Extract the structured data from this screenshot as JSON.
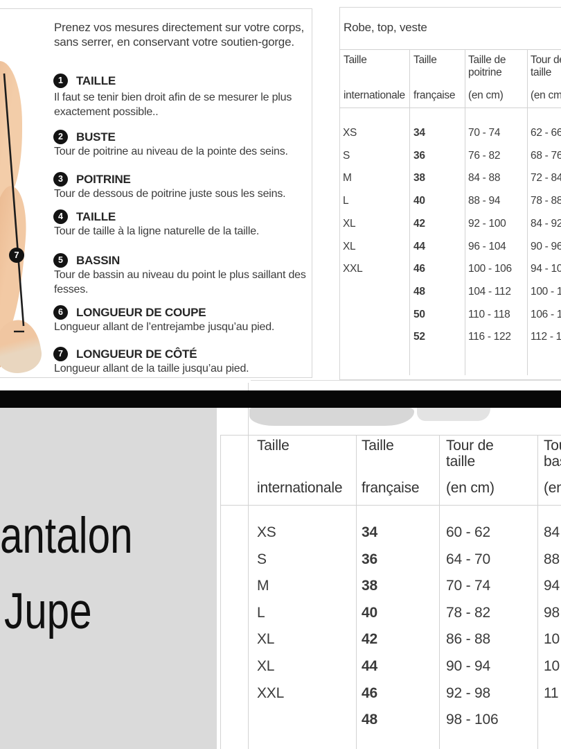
{
  "guide": {
    "intro": "Prenez vos mesures directement sur votre corps,\nsans serrer, en conservant votre soutien-gorge.",
    "items": [
      {
        "num": "1",
        "title": "TAILLE",
        "desc": "Il faut se tenir bien droit afin de se mesurer le plus\nexactement possible.."
      },
      {
        "num": "2",
        "title": "BUSTE",
        "desc": "Tour de poitrine au niveau de la pointe des seins."
      },
      {
        "num": "3",
        "title": "POITRINE",
        "desc": "Tour de dessous de poitrine juste sous les seins."
      },
      {
        "num": "4",
        "title": "TAILLE",
        "desc": "Tour de taille à la ligne naturelle de la taille."
      },
      {
        "num": "5",
        "title": "BASSIN",
        "desc": "Tour de bassin au niveau du point le plus saillant des\nfesses."
      },
      {
        "num": "6",
        "title": "LONGUEUR DE COUPE",
        "desc": "Longueur allant de l’entrejambe jusqu’au pied."
      },
      {
        "num": "7",
        "title": "LONGUEUR DE CÔTÉ",
        "desc": "Longueur allant de la taille jusqu’au pied."
      }
    ],
    "figure_badge": "7"
  },
  "robe_table": {
    "title": "Robe, top, veste",
    "headers": [
      {
        "l1": "Taille",
        "l2": "internationale"
      },
      {
        "l1": "Taille",
        "l2": "française"
      },
      {
        "l1": "Taille de",
        "l2": "poitrine",
        "l3": "(en cm)"
      },
      {
        "l1": "Tour de",
        "l2": "taille",
        "l3": "(en cm)"
      }
    ],
    "rows": [
      [
        "XS",
        "34",
        "70 - 74",
        "62 - 66"
      ],
      [
        "S",
        "36",
        "76 - 82",
        "68 - 76"
      ],
      [
        "M",
        "38",
        "84 - 88",
        "72 - 84"
      ],
      [
        "L",
        "40",
        "88 - 94",
        "78 - 88"
      ],
      [
        "XL",
        "42",
        "92 - 100",
        "84 - 92"
      ],
      [
        "XL",
        "44",
        "96 - 104",
        "90 - 96"
      ],
      [
        "XXL",
        "46",
        "100 - 106",
        "94 - 10"
      ],
      [
        "",
        "48",
        "104 - 112",
        "100 - 1"
      ],
      [
        "",
        "50",
        "110 - 118",
        "106 - 1"
      ],
      [
        "",
        "52",
        "116 - 122",
        "112 - 1"
      ]
    ]
  },
  "bottom": {
    "categories": [
      "Pantalon",
      "Jupe"
    ],
    "table": {
      "headers": [
        {
          "l1": "Taille",
          "l2": "internationale"
        },
        {
          "l1": "Taille",
          "l2": "française"
        },
        {
          "l1": "Tour de",
          "l2": "taille",
          "l3": "(en cm)"
        },
        {
          "l1": "Tour de",
          "l2": "bassin",
          "l3": "(en cm)"
        }
      ],
      "rows": [
        [
          "XS",
          "34",
          "60 - 62",
          "84"
        ],
        [
          "S",
          "36",
          "64 - 70",
          "88"
        ],
        [
          "M",
          "38",
          "70 - 74",
          "94"
        ],
        [
          "L",
          "40",
          "78 - 82",
          "98"
        ],
        [
          "XL",
          "42",
          "86 - 88",
          "10"
        ],
        [
          "XL",
          "44",
          "90 - 94",
          "10"
        ],
        [
          "XXL",
          "46",
          "92 - 98",
          "11"
        ],
        [
          "",
          "48",
          "98 - 106",
          ""
        ]
      ]
    }
  }
}
